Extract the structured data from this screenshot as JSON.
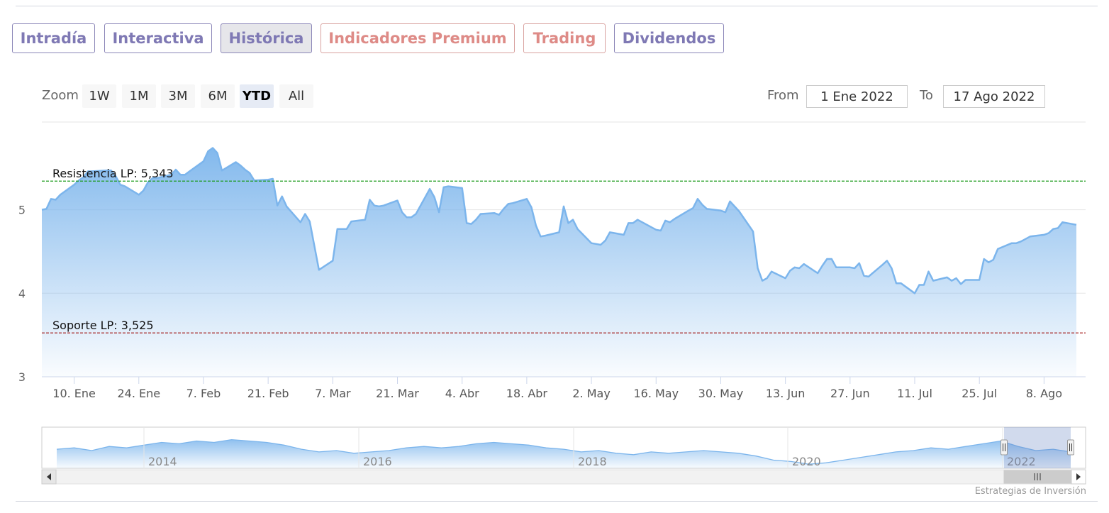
{
  "tabs": [
    {
      "label": "Intradía",
      "state": "normal"
    },
    {
      "label": "Interactiva",
      "state": "normal"
    },
    {
      "label": "Histórica",
      "state": "active"
    },
    {
      "label": "Indicadores Premium",
      "state": "premium"
    },
    {
      "label": "Trading",
      "state": "premium"
    },
    {
      "label": "Dividendos",
      "state": "normal"
    }
  ],
  "range_selector": {
    "zoom_label": "Zoom",
    "buttons": [
      "1W",
      "1M",
      "3M",
      "6M",
      "YTD",
      "All"
    ],
    "selected": "YTD",
    "from_label": "From",
    "from_value": "1 Ene 2022",
    "to_label": "To",
    "to_value": "17 Ago 2022"
  },
  "credit": "Estrategias de Inversión",
  "colors": {
    "series_line": "#7cb5ec",
    "resistance_line": "#1a9a1a",
    "support_line": "#a01010",
    "accent": "#7f79b4",
    "premium": "#de8b87"
  },
  "chart_data": {
    "type": "area",
    "x_start": "2022-01-03",
    "x_end": "2022-08-17",
    "xtick_labels": [
      "10. Ene",
      "24. Ene",
      "7. Feb",
      "21. Feb",
      "7. Mar",
      "21. Mar",
      "4. Abr",
      "18. Abr",
      "2. May",
      "16. May",
      "30. May",
      "13. Jun",
      "27. Jun",
      "11. Jul",
      "25. Jul",
      "8. Ago"
    ],
    "ytick_labels": [
      "3",
      "4",
      "5"
    ],
    "ylim": [
      3,
      6.05
    ],
    "grid": "horizontal",
    "series": [
      {
        "values": [
          5.0,
          5.01,
          5.13,
          5.12,
          5.18,
          5.3,
          5.35,
          5.39,
          5.46,
          5.46,
          5.47,
          5.47,
          5.4,
          5.3,
          5.28,
          5.18,
          5.23,
          5.33,
          5.38,
          5.38,
          5.42,
          5.48,
          5.42,
          5.42,
          5.46,
          5.58,
          5.7,
          5.74,
          5.68,
          5.47,
          5.57,
          5.53,
          5.48,
          5.44,
          5.35,
          5.36,
          5.37,
          5.05,
          5.16,
          5.04,
          4.85,
          4.95,
          4.86,
          4.57,
          4.28,
          4.39,
          4.77,
          4.77,
          4.77,
          4.86,
          4.88,
          5.12,
          5.05,
          5.04,
          5.05,
          5.11,
          4.97,
          4.91,
          4.91,
          4.95,
          5.25,
          5.15,
          4.97,
          5.27,
          5.28,
          5.26,
          4.84,
          4.83,
          4.88,
          4.95,
          4.96,
          4.94,
          5.01,
          5.07,
          5.08,
          5.13,
          5.03,
          4.81,
          4.68,
          4.69,
          4.73,
          5.04,
          4.84,
          4.88,
          4.77,
          4.6,
          4.59,
          4.58,
          4.63,
          4.73,
          4.7,
          4.84,
          4.84,
          4.88,
          4.85,
          4.76,
          4.75,
          4.87,
          4.85,
          4.89,
          4.99,
          5.02,
          5.13,
          5.06,
          5.01,
          4.99,
          4.97,
          5.1,
          5.04,
          4.98,
          4.74,
          4.3,
          4.15,
          4.18,
          4.26,
          4.18,
          4.27,
          4.31,
          4.3,
          4.35,
          4.24,
          4.33,
          4.41,
          4.41,
          4.31,
          4.31,
          4.3,
          4.36,
          4.21,
          4.2,
          4.34,
          4.39,
          4.3,
          4.12,
          4.12,
          4.0,
          4.1,
          4.1,
          4.26,
          4.15,
          4.19,
          4.15,
          4.18,
          4.11,
          4.16,
          4.16,
          4.41,
          4.37,
          4.4,
          4.53,
          4.6,
          4.6,
          4.62,
          4.65,
          4.68,
          4.7,
          4.72,
          4.77,
          4.78,
          4.85,
          4.82
        ]
      }
    ],
    "plot_lines": [
      {
        "label": "Resistencia LP: 5,343",
        "value": 5.343,
        "style": "dashed",
        "color": "#1a9a1a"
      },
      {
        "label": "Soporte LP: 3,525",
        "value": 3.525,
        "style": "dashed",
        "color": "#a01010"
      }
    ],
    "navigator": {
      "year_labels": [
        "2014",
        "2016",
        "2018",
        "2020",
        "2022"
      ],
      "values": [
        4.4,
        4.5,
        4.3,
        4.6,
        4.5,
        4.7,
        4.9,
        4.8,
        5.0,
        4.9,
        5.1,
        5.0,
        4.9,
        4.7,
        4.4,
        4.2,
        4.3,
        4.1,
        4.2,
        4.3,
        4.5,
        4.6,
        4.5,
        4.6,
        4.8,
        4.9,
        4.8,
        4.7,
        4.5,
        4.4,
        4.2,
        4.3,
        4.1,
        4.0,
        4.2,
        4.1,
        4.2,
        4.3,
        4.2,
        4.1,
        3.9,
        3.6,
        3.5,
        3.3,
        3.4,
        3.6,
        3.8,
        4.0,
        4.2,
        4.3,
        4.5,
        4.4,
        4.6,
        4.8,
        5.0,
        4.6,
        4.3,
        4.4,
        4.2
      ],
      "selected_range": [
        "2022-01-01",
        "2022-08-17"
      ]
    }
  }
}
